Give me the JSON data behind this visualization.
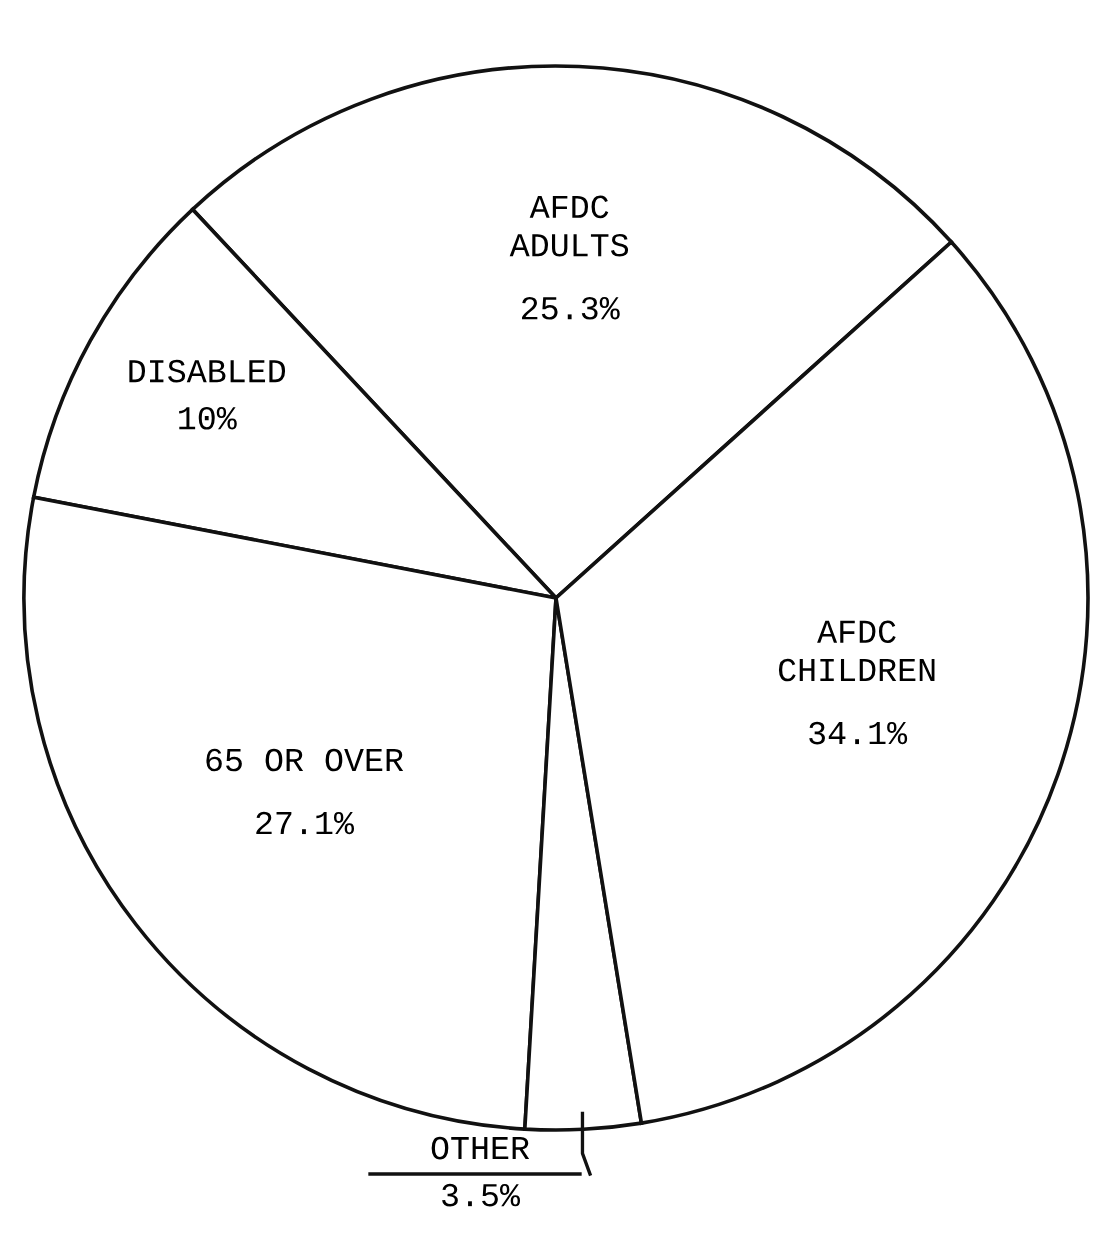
{
  "chart_data": {
    "type": "pie",
    "categories": [
      "AFDC\nADULTS",
      "DISABLED",
      "65 OR OVER",
      "OTHER",
      "AFDC\nCHILDREN"
    ],
    "values": [
      25.3,
      10,
      27.1,
      3.5,
      34.1
    ],
    "value_labels": [
      "25.3%",
      "10%",
      "27.1%",
      "3.5%",
      "34.1%"
    ],
    "colors": [
      "#ffffff",
      "#ffffff",
      "#ffffff",
      "#ffffff",
      "#ffffff"
    ]
  }
}
